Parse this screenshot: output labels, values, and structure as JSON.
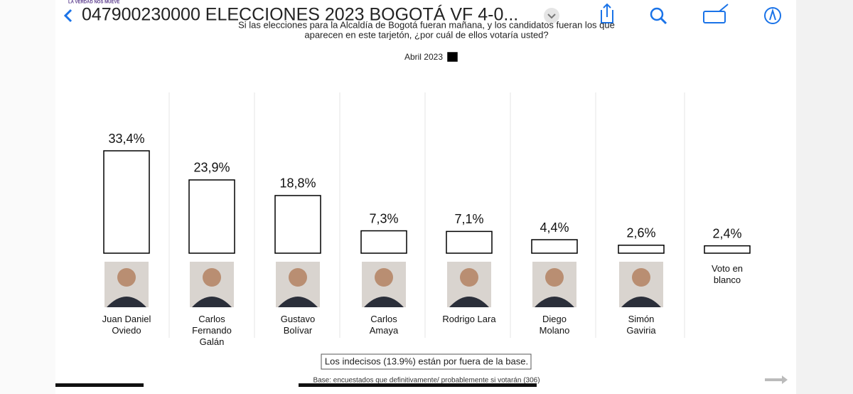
{
  "toolbar": {
    "title": "047900230000 ELECCIONES 2023 BOGOTÁ VF 4-0..."
  },
  "header": {
    "brand": "LA VERDAD NOS MUEVE"
  },
  "chart_data": {
    "type": "bar",
    "title": "Si las elecciones para la Alcaldía de Bogotá fueran mañana, y los candidatos fueran los que",
    "subtitle": "aparecen en este tarjetón, ¿por cuál de ellos votaría usted?",
    "categories": [
      "Juan Daniel Oviedo",
      "Carlos Fernando Galán",
      "Gustavo Bolívar",
      "Carlos Amaya",
      "Rodrigo Lara",
      "Diego Molano",
      "Simón Gaviria",
      "Voto en blanco"
    ],
    "series": [
      {
        "name": "Abril 2023",
        "color": "#ffffff",
        "values": [
          33.4,
          23.9,
          18.8,
          7.3,
          7.1,
          4.4,
          2.6,
          2.4
        ],
        "value_labels": [
          "33,4%",
          "23,9%",
          "18,8%",
          "7,3%",
          "7,1%",
          "4,4%",
          "2,6%",
          "2,4%"
        ]
      }
    ],
    "annotations": [
      "Los indecisos (13.9%) están por fuera de la base.",
      "Base: encuestados que definitivamente/ probablemente si votarán (306)"
    ]
  }
}
